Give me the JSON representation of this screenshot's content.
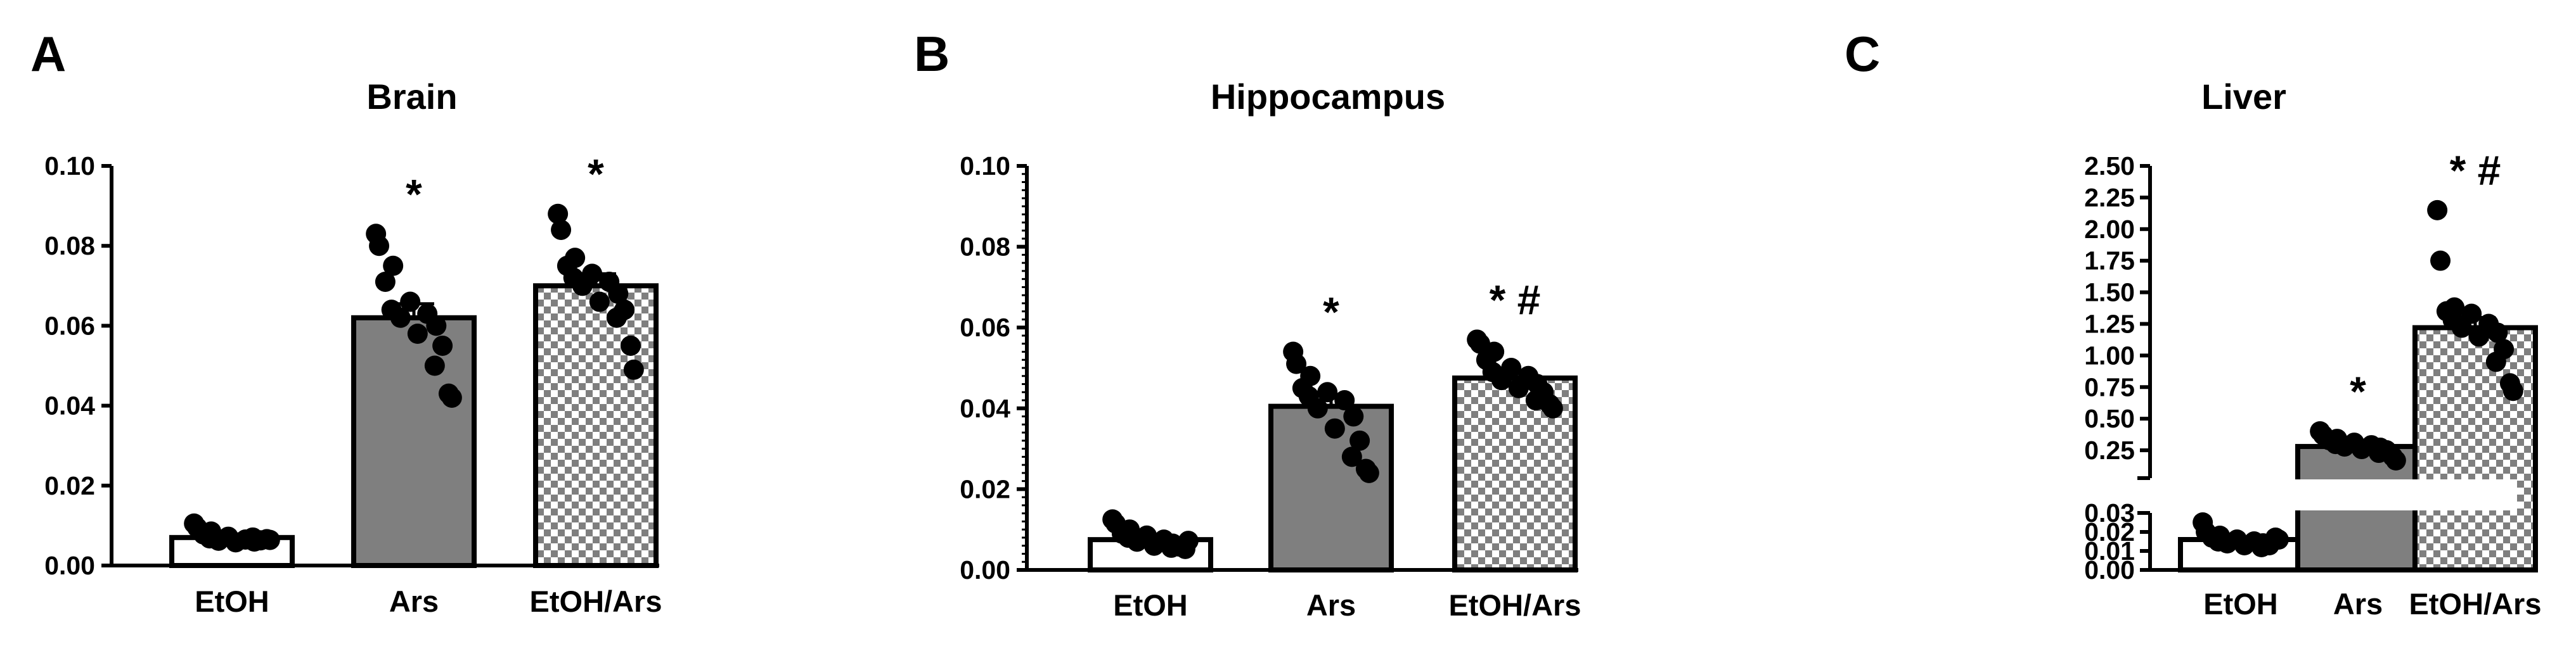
{
  "chart_data": [
    {
      "panel": "A",
      "type": "bar",
      "title": "Brain",
      "categories": [
        "EtOH",
        "Ars",
        "EtOH/Ars"
      ],
      "values": [
        0.007,
        0.062,
        0.07
      ],
      "sem": [
        0.0005,
        0.0035,
        0.003
      ],
      "points": [
        [
          0.0105,
          0.0095,
          0.0085,
          0.0078,
          0.0072,
          0.0068,
          0.0065,
          0.0062,
          0.006,
          0.0058,
          0.0063,
          0.007,
          0.0066,
          0.0064
        ],
        [
          0.083,
          0.08,
          0.075,
          0.071,
          0.066,
          0.064,
          0.063,
          0.062,
          0.06,
          0.058,
          0.055,
          0.05,
          0.043,
          0.042
        ],
        [
          0.088,
          0.084,
          0.077,
          0.075,
          0.073,
          0.072,
          0.071,
          0.07,
          0.068,
          0.066,
          0.064,
          0.062,
          0.055,
          0.049
        ]
      ],
      "fills": [
        "white",
        "gray",
        "checker"
      ],
      "significance": [
        "",
        "*",
        "*"
      ],
      "yticks": [
        "0.00",
        "0.02",
        "0.04",
        "0.06",
        "0.08",
        "0.10"
      ],
      "ylim": [
        0,
        0.1
      ]
    },
    {
      "panel": "B",
      "type": "bar",
      "title": "Hippocampus",
      "categories": [
        "EtOH",
        "Ars",
        "EtOH/Ars"
      ],
      "values": [
        0.0075,
        0.0405,
        0.0475
      ],
      "sem": [
        0.0006,
        0.0025,
        0.0015
      ],
      "points": [
        [
          0.0125,
          0.0115,
          0.01,
          0.009,
          0.0085,
          0.008,
          0.0075,
          0.007,
          0.0065,
          0.006,
          0.0058,
          0.0055,
          0.0052,
          0.0072
        ],
        [
          0.054,
          0.051,
          0.048,
          0.045,
          0.044,
          0.043,
          0.042,
          0.04,
          0.038,
          0.035,
          0.032,
          0.028,
          0.025,
          0.024
        ],
        [
          0.057,
          0.056,
          0.054,
          0.052,
          0.05,
          0.049,
          0.048,
          0.047,
          0.046,
          0.045,
          0.044,
          0.042,
          0.041,
          0.04
        ]
      ],
      "fills": [
        "white",
        "gray",
        "checker"
      ],
      "significance": [
        "",
        "*",
        "* #"
      ],
      "yticks": [
        "0.00",
        "0.02",
        "0.04",
        "0.06",
        "0.08",
        "0.10"
      ],
      "ylim": [
        0,
        0.1
      ]
    },
    {
      "panel": "C",
      "type": "bar",
      "title": "Liver",
      "categories": [
        "EtOH",
        "Ars",
        "EtOH/Ars"
      ],
      "values": [
        0.016,
        0.28,
        1.22
      ],
      "sem": [
        0.001,
        0.02,
        0.08
      ],
      "points": [
        [
          0.025,
          0.02,
          0.018,
          0.017,
          0.016,
          0.015,
          0.015,
          0.014,
          0.014,
          0.013,
          0.013,
          0.012,
          0.017,
          0.016
        ],
        [
          0.4,
          0.37,
          0.34,
          0.33,
          0.31,
          0.3,
          0.29,
          0.28,
          0.27,
          0.26,
          0.25,
          0.23,
          0.2,
          0.17
        ],
        [
          2.15,
          1.75,
          1.38,
          1.35,
          1.33,
          1.28,
          1.25,
          1.22,
          1.18,
          1.15,
          1.05,
          0.95,
          0.78,
          0.72
        ]
      ],
      "fills": [
        "white",
        "gray",
        "checker"
      ],
      "significance": [
        "",
        "*",
        "* #"
      ],
      "ylim": [
        0,
        2.5
      ],
      "axis_break": {
        "lower": [
          0,
          0.03
        ],
        "upper": [
          0.13,
          2.5
        ]
      },
      "yticks_lower": [
        "0.00",
        "0.01",
        "0.02",
        "0.03"
      ],
      "yticks_upper": [
        "0.25",
        "0.50",
        "0.75",
        "1.00",
        "1.25",
        "1.50",
        "1.75",
        "2.00",
        "2.25",
        "2.50"
      ]
    }
  ]
}
